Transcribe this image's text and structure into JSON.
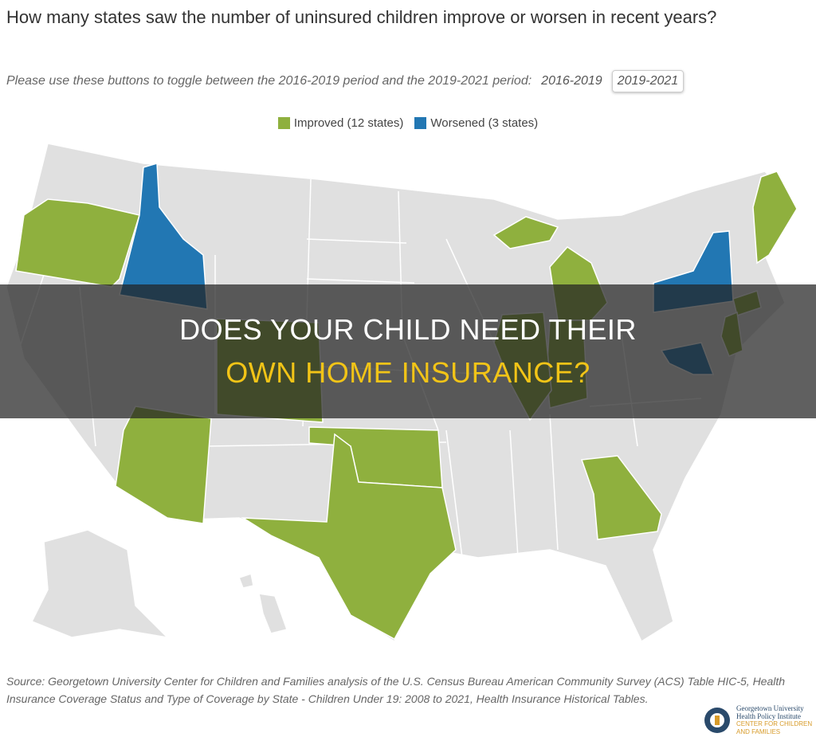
{
  "header": {
    "title": "How many states saw the number of uninsured children improve or worsen in recent years?",
    "subtitle": "Please use these buttons to toggle between the 2016-2019 period and the 2019-2021 period:",
    "buttons": [
      "2016-2019",
      "2019-2021"
    ]
  },
  "legend": [
    {
      "label": "Improved (12 states)",
      "color": "#8fb03e"
    },
    {
      "label": "Worsened (3 states)",
      "color": "#2277b3"
    }
  ],
  "banner": [
    "DOES YOUR CHILD NEED THEIR",
    "OWN HOME INSURANCE?"
  ],
  "source": "Source: Georgetown University Center for Children and Families analysis of the U.S. Census Bureau American Community Survey (ACS) Table HIC-5, Health Insurance Coverage Status and Type of Coverage by State - Children Under 19: 2008 to 2021, Health Insurance Historical Tables.",
  "logo": [
    "Georgetown University",
    "Health Policy Institute",
    "CENTER FOR CHILDREN",
    "AND FAMILIES"
  ]
}
